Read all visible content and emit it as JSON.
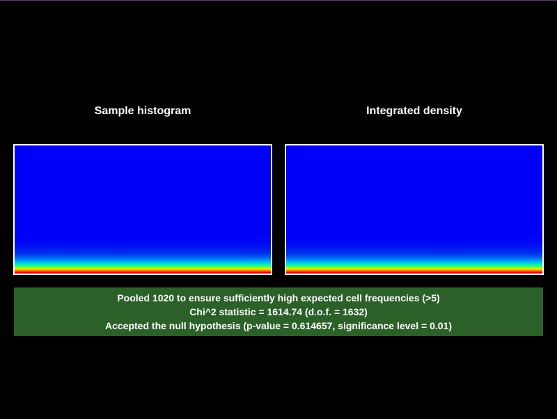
{
  "panels": {
    "left": {
      "title": "Sample histogram"
    },
    "right": {
      "title": "Integrated density"
    }
  },
  "colors": {
    "background": "#000000",
    "heatmap_fill": "#0000f8",
    "panel_border": "#ffffff",
    "info_background": "#2b6128"
  },
  "info": {
    "lines": [
      "Pooled 1020 to ensure sufficiently high expected cell frequencies (>5)",
      "Chi^2 statistic = 1614.74 (d.o.f. = 1632)",
      "Accepted the null hypothesis (p-value = 0.614657, significance level = 0.01)"
    ]
  }
}
